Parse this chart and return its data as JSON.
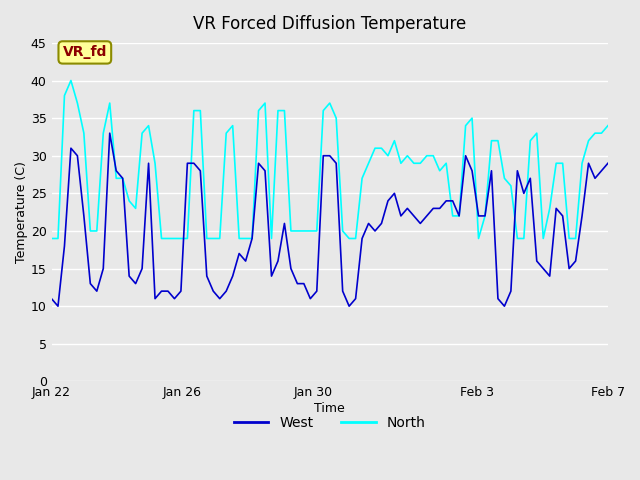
{
  "title": "VR Forced Diffusion Temperature",
  "xlabel": "Time",
  "ylabel": "Temperature (C)",
  "ylim": [
    0,
    45
  ],
  "yticks": [
    0,
    5,
    10,
    15,
    20,
    25,
    30,
    35,
    40,
    45
  ],
  "xtick_labels": [
    "Jan 22",
    "Jan 26",
    "Jan 30",
    "Feb 3",
    "Feb 7"
  ],
  "xtick_positions": [
    0,
    4,
    8,
    13,
    17
  ],
  "west_color": "#0000CD",
  "north_color": "#00FFFF",
  "annotation_text": "VR_fd",
  "annotation_facecolor": "#FFFF99",
  "annotation_edgecolor": "#8B8B00",
  "annotation_textcolor": "#8B0000",
  "legend_west": "West",
  "legend_north": "North",
  "background_color": "#E8E8E8",
  "plot_bg_color": "#E8E8E8",
  "grid_color": "#FFFFFF",
  "west_data": [
    11,
    10,
    18,
    31,
    30,
    22,
    13,
    12,
    15,
    33,
    28,
    27,
    14,
    13,
    15,
    29,
    11,
    12,
    12,
    11,
    12,
    29,
    29,
    28,
    14,
    12,
    11,
    12,
    14,
    17,
    16,
    19,
    29,
    28,
    14,
    16,
    21,
    15,
    13,
    13,
    11,
    12,
    30,
    30,
    29,
    12,
    10,
    11,
    19,
    21,
    20,
    21,
    24,
    25,
    22,
    23,
    22,
    21,
    22,
    23,
    23,
    24,
    24,
    22,
    30,
    28,
    22,
    22,
    28,
    11,
    10,
    12,
    28,
    25,
    27,
    16,
    15,
    14,
    23,
    22,
    15,
    16,
    22,
    29,
    27,
    28,
    29
  ],
  "north_data": [
    19,
    19,
    38,
    40,
    37,
    33,
    20,
    20,
    33,
    37,
    27,
    27,
    24,
    23,
    33,
    34,
    29,
    19,
    19,
    19,
    19,
    19,
    36,
    36,
    19,
    19,
    19,
    33,
    34,
    19,
    19,
    19,
    36,
    37,
    19,
    36,
    36,
    20,
    20,
    20,
    20,
    20,
    36,
    37,
    35,
    20,
    19,
    19,
    27,
    29,
    31,
    31,
    30,
    32,
    29,
    30,
    29,
    29,
    30,
    30,
    28,
    29,
    22,
    22,
    34,
    35,
    19,
    22,
    32,
    32,
    27,
    26,
    19,
    19,
    32,
    33,
    19,
    23,
    29,
    29,
    19,
    19,
    29,
    32,
    33,
    33,
    34
  ]
}
